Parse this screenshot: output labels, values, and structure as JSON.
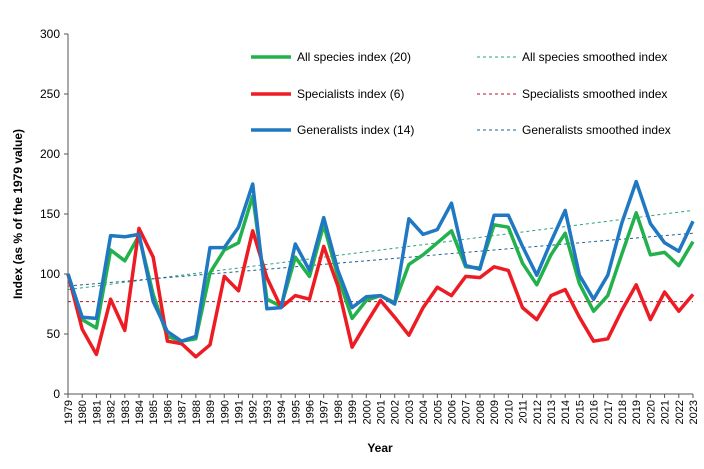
{
  "chart_data": {
    "type": "line",
    "xlabel": "Year",
    "ylabel": "Index (as % of the 1979 value)",
    "ylim": [
      0,
      300
    ],
    "yticks": [
      0,
      50,
      100,
      150,
      200,
      250,
      300
    ],
    "x": [
      1979,
      1980,
      1981,
      1982,
      1983,
      1984,
      1985,
      1986,
      1987,
      1988,
      1989,
      1990,
      1991,
      1992,
      1993,
      1994,
      1995,
      1996,
      1997,
      1998,
      1999,
      2000,
      2001,
      2002,
      2003,
      2004,
      2005,
      2006,
      2007,
      2008,
      2009,
      2010,
      2011,
      2012,
      2013,
      2014,
      2015,
      2016,
      2017,
      2018,
      2019,
      2020,
      2021,
      2022,
      2023
    ],
    "x_tick_labels": [
      "1979",
      "1980",
      "1981",
      "1982",
      "1983",
      "1984",
      "1985",
      "1986",
      "1987",
      "1988",
      "1989",
      "1990",
      "1991",
      "1992",
      "1993",
      "1994",
      "1995",
      "1996",
      "1997",
      "1998",
      "1999",
      "2000",
      "2001",
      "2002",
      "2003",
      "2004",
      "2005",
      "2006",
      "2007",
      "2008",
      "2009",
      "2010",
      "2011",
      "2012",
      "2013",
      "2014",
      "2015",
      "2016",
      "2017",
      "2018",
      "2019",
      "2020",
      "2021",
      "2022",
      "2023"
    ],
    "grid": false,
    "legend_position": "top",
    "series": [
      {
        "name": "All species index (20)",
        "style": "solid",
        "color": "#22b14c",
        "values": [
          100,
          62,
          55,
          120,
          111,
          132,
          83,
          48,
          44,
          46,
          101,
          120,
          126,
          165,
          79,
          73,
          114,
          98,
          141,
          98,
          63,
          78,
          82,
          76,
          108,
          116,
          126,
          136,
          106,
          105,
          141,
          139,
          109,
          91,
          116,
          134,
          92,
          69,
          82,
          117,
          151,
          116,
          118,
          107,
          127
        ]
      },
      {
        "name": "Specialists index (6)",
        "style": "solid",
        "color": "#ed1c24",
        "values": [
          100,
          54,
          33,
          79,
          53,
          138,
          114,
          44,
          42,
          31,
          41,
          98,
          86,
          136,
          97,
          72,
          82,
          79,
          123,
          90,
          39,
          59,
          78,
          64,
          49,
          72,
          89,
          82,
          98,
          97,
          106,
          103,
          72,
          62,
          82,
          87,
          64,
          44,
          46,
          70,
          91,
          62,
          85,
          69,
          83
        ]
      },
      {
        "name": "Generalists index (14)",
        "style": "solid",
        "color": "#1f78c1",
        "values": [
          100,
          64,
          63,
          132,
          131,
          133,
          77,
          52,
          44,
          48,
          122,
          122,
          139,
          175,
          71,
          72,
          125,
          103,
          147,
          103,
          72,
          81,
          82,
          75,
          146,
          133,
          137,
          159,
          107,
          104,
          149,
          149,
          123,
          99,
          127,
          153,
          99,
          79,
          99,
          143,
          177,
          142,
          126,
          119,
          144
        ]
      },
      {
        "name": "All species smoothed index",
        "style": "dashed",
        "color": "#2aa37a",
        "values": [
          87,
          88.5,
          90,
          91.5,
          93,
          94.5,
          96,
          97.5,
          99,
          100.5,
          102,
          103.5,
          105,
          106.5,
          108,
          109.5,
          111,
          112.5,
          114,
          115.5,
          117,
          118.5,
          120,
          121.5,
          123,
          124.5,
          126,
          127.5,
          129,
          130.5,
          132,
          133.5,
          135,
          136.5,
          138,
          139.5,
          141,
          142.5,
          144,
          145.5,
          147,
          148.5,
          150,
          151.5,
          153
        ]
      },
      {
        "name": "Specialists smoothed index",
        "style": "dashed",
        "color": "#b5122e",
        "values": [
          77,
          77,
          77,
          77,
          77,
          77,
          77,
          77,
          77,
          77,
          77,
          77,
          77,
          77,
          77,
          77,
          77,
          77,
          77,
          77,
          77,
          77,
          77,
          77,
          77,
          77,
          77,
          77,
          77,
          77,
          77,
          77,
          77,
          77,
          77,
          77,
          77,
          77,
          77,
          77,
          77,
          77,
          77,
          77,
          77
        ]
      },
      {
        "name": "Generalists smoothed index",
        "style": "dashed",
        "color": "#1f5f8f",
        "values": [
          90,
          91,
          92,
          93,
          94,
          95,
          96,
          97,
          98,
          99,
          100,
          101,
          102,
          103,
          104,
          105,
          106,
          107,
          108,
          109,
          110,
          111,
          112,
          113,
          114,
          115,
          116,
          117,
          118,
          119,
          120,
          121,
          122,
          123,
          124,
          125,
          126,
          127,
          128,
          129,
          130,
          131,
          132,
          133,
          134
        ]
      }
    ]
  }
}
